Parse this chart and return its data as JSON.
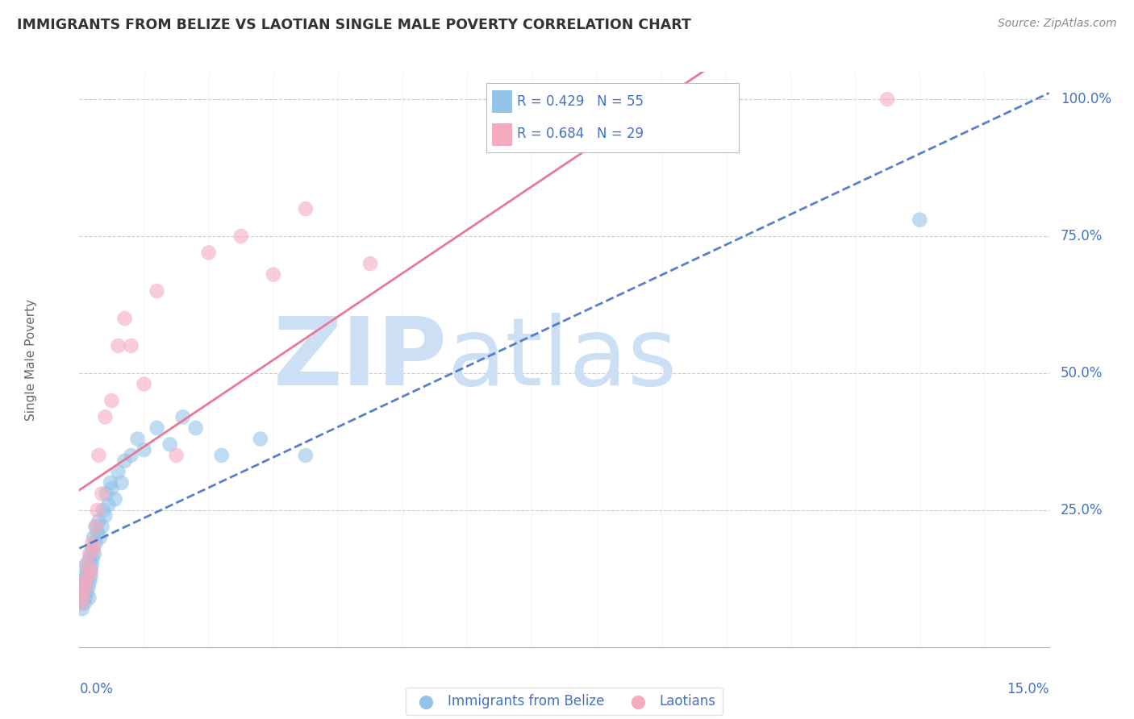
{
  "title": "IMMIGRANTS FROM BELIZE VS LAOTIAN SINGLE MALE POVERTY CORRELATION CHART",
  "source": "Source: ZipAtlas.com",
  "ylabel": "Single Male Poverty",
  "legend_label1": "Immigrants from Belize",
  "legend_label2": "Laotians",
  "R1": 0.429,
  "N1": 55,
  "R2": 0.684,
  "N2": 29,
  "xlim": [
    0.0,
    15.0
  ],
  "ylim": [
    0.0,
    105.0
  ],
  "yticks": [
    0.0,
    25.0,
    50.0,
    75.0,
    100.0
  ],
  "ytick_labels": [
    "",
    "25.0%",
    "50.0%",
    "75.0%",
    "100.0%"
  ],
  "color_blue": "#94C4E8",
  "color_pink": "#F4AABF",
  "color_blue_line": "#4472C4",
  "color_pink_line": "#E87896",
  "background": "#FFFFFF",
  "watermark_zip": "ZIP",
  "watermark_atlas": "atlas",
  "watermark_color": "#CCDFF5",
  "title_color": "#333333",
  "axis_label_color": "#4472C4",
  "blue_scatter_x": [
    0.02,
    0.03,
    0.04,
    0.05,
    0.05,
    0.06,
    0.07,
    0.08,
    0.08,
    0.09,
    0.1,
    0.1,
    0.11,
    0.12,
    0.12,
    0.13,
    0.14,
    0.15,
    0.15,
    0.16,
    0.17,
    0.18,
    0.18,
    0.19,
    0.2,
    0.2,
    0.22,
    0.23,
    0.25,
    0.26,
    0.28,
    0.3,
    0.32,
    0.35,
    0.37,
    0.4,
    0.42,
    0.45,
    0.48,
    0.5,
    0.55,
    0.6,
    0.65,
    0.7,
    0.8,
    0.9,
    1.0,
    1.2,
    1.4,
    1.6,
    1.8,
    2.2,
    2.8,
    3.5,
    13.0
  ],
  "blue_scatter_y": [
    8,
    10,
    7,
    9,
    12,
    11,
    10,
    13,
    8,
    9,
    11,
    15,
    12,
    10,
    14,
    13,
    11,
    16,
    9,
    12,
    14,
    13,
    17,
    15,
    16,
    18,
    20,
    17,
    19,
    22,
    21,
    23,
    20,
    22,
    25,
    24,
    28,
    26,
    30,
    29,
    27,
    32,
    30,
    34,
    35,
    38,
    36,
    40,
    37,
    42,
    40,
    35,
    38,
    35,
    78
  ],
  "pink_scatter_x": [
    0.02,
    0.04,
    0.06,
    0.08,
    0.1,
    0.12,
    0.14,
    0.16,
    0.18,
    0.2,
    0.22,
    0.25,
    0.28,
    0.3,
    0.35,
    0.4,
    0.5,
    0.6,
    0.7,
    0.8,
    1.0,
    1.2,
    1.5,
    2.0,
    2.5,
    3.0,
    3.5,
    4.5,
    12.5
  ],
  "pink_scatter_y": [
    8,
    10,
    9,
    12,
    11,
    15,
    13,
    17,
    14,
    19,
    18,
    22,
    25,
    35,
    28,
    42,
    45,
    55,
    60,
    55,
    48,
    65,
    35,
    72,
    75,
    68,
    80,
    70,
    100
  ]
}
